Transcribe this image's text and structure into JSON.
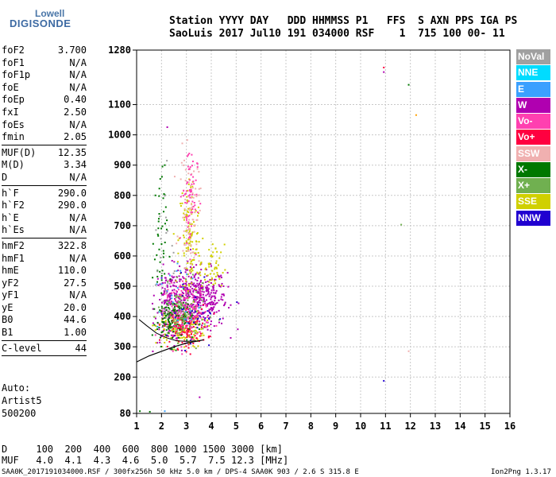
{
  "logo": {
    "line1": "Lowell",
    "line2": "DIGISONDE"
  },
  "header": {
    "line1": "Station YYYY DAY   DDD HHMMSS P1   FFS  S AXN PPS IGA PS",
    "line2": "SaoLuis 2017 Jul10 191 034000 RSF    1  715 100 00- 11"
  },
  "params": [
    [
      [
        "foF2",
        "3.700"
      ],
      [
        "foF1",
        "N/A"
      ],
      [
        "foF1p",
        "N/A"
      ],
      [
        "foE",
        "N/A"
      ],
      [
        "foEp",
        "0.40"
      ],
      [
        "fxI",
        "2.50"
      ],
      [
        "foEs",
        "N/A"
      ],
      [
        "fmin",
        "2.05"
      ]
    ],
    [
      [
        "MUF(D)",
        "12.35"
      ],
      [
        "M(D)",
        "3.34"
      ],
      [
        "D",
        "N/A"
      ]
    ],
    [
      [
        "h`F",
        "290.0"
      ],
      [
        "h`F2",
        "290.0"
      ],
      [
        "h`E",
        "N/A"
      ],
      [
        "h`Es",
        "N/A"
      ]
    ],
    [
      [
        "hmF2",
        "322.8"
      ],
      [
        "hmF1",
        "N/A"
      ],
      [
        "hmE",
        "110.0"
      ],
      [
        "yF2",
        "27.5"
      ],
      [
        "yF1",
        "N/A"
      ],
      [
        "yE",
        "20.0"
      ],
      [
        "B0",
        "44.6"
      ],
      [
        "B1",
        "1.00"
      ]
    ],
    [
      [
        "C-level",
        "44"
      ]
    ]
  ],
  "auto": [
    "Auto:",
    "Artist5",
    "500200"
  ],
  "muf_table": {
    "d_row": "D     100  200  400  600  800 1000 1500 3000 [km]",
    "muf_row": "MUF   4.0  4.1  4.3  4.6  5.0  5.7  7.5 12.3 [MHz]"
  },
  "footer": {
    "left": "SAA0K_2017191034000.RSF / 300fx256h 50 kHz 5.0 km / DPS-4 SAA0K 903 / 2.6 S 315.8 E",
    "right": "Ion2Png 1.3.17"
  },
  "legend": [
    {
      "label": "NoVal",
      "color": "#a0a0a0"
    },
    {
      "label": "NNE",
      "color": "#00dcff"
    },
    {
      "label": "E",
      "color": "#3aa0ff"
    },
    {
      "label": "W",
      "color": "#b000b0"
    },
    {
      "label": "Vo-",
      "color": "#ff40b0"
    },
    {
      "label": "Vo+",
      "color": "#ff0040"
    },
    {
      "label": "SSW",
      "color": "#f0b0b0"
    },
    {
      "label": "X-",
      "color": "#007800"
    },
    {
      "label": "X+",
      "color": "#70b050"
    },
    {
      "label": "SSE",
      "color": "#d0d000"
    },
    {
      "label": "NNW",
      "color": "#2000d0"
    }
  ],
  "chart_data": {
    "type": "scatter",
    "xlim": [
      1,
      16
    ],
    "ylim": [
      80,
      1280
    ],
    "xticks": [
      1,
      2,
      3,
      4,
      5,
      6,
      7,
      8,
      9,
      10,
      11,
      12,
      13,
      14,
      15,
      16
    ],
    "yticks": [
      80,
      200,
      300,
      400,
      500,
      600,
      700,
      800,
      900,
      1000,
      1100,
      1280
    ],
    "grid": true,
    "legend_position": "right",
    "profile_line": [
      [
        1.0,
        250
      ],
      [
        1.5,
        270
      ],
      [
        2.0,
        285
      ],
      [
        2.5,
        300
      ],
      [
        3.0,
        312
      ],
      [
        3.5,
        320
      ],
      [
        3.7,
        323
      ]
    ],
    "profile_line_upper": [
      [
        1.1,
        390
      ],
      [
        1.4,
        370
      ],
      [
        1.8,
        345
      ],
      [
        2.2,
        330
      ],
      [
        2.6,
        320
      ],
      [
        3.0,
        318
      ],
      [
        3.4,
        320
      ]
    ],
    "clusters": [
      {
        "color": "#b000b0",
        "xc": 3.4,
        "yc": 460,
        "sx": 0.6,
        "sy": 50,
        "n": 420
      },
      {
        "color": "#b000b0",
        "xc": 2.3,
        "yc": 440,
        "sx": 0.3,
        "sy": 60,
        "n": 160
      },
      {
        "color": "#d0d000",
        "xc": 3.1,
        "yc": 650,
        "sx": 0.22,
        "sy": 110,
        "n": 130
      },
      {
        "color": "#d0d000",
        "xc": 2.7,
        "yc": 360,
        "sx": 0.5,
        "sy": 30,
        "n": 150
      },
      {
        "color": "#ff0040",
        "xc": 2.9,
        "yc": 370,
        "sx": 0.45,
        "sy": 35,
        "n": 140
      },
      {
        "color": "#ff40b0",
        "xc": 3.0,
        "yc": 420,
        "sx": 0.45,
        "sy": 45,
        "n": 140
      },
      {
        "color": "#007800",
        "xc": 2.4,
        "yc": 390,
        "sx": 0.4,
        "sy": 40,
        "n": 110
      },
      {
        "color": "#70b050",
        "xc": 2.8,
        "yc": 410,
        "sx": 0.5,
        "sy": 45,
        "n": 110
      },
      {
        "color": "#f0b0b0",
        "xc": 3.1,
        "yc": 750,
        "sx": 0.2,
        "sy": 90,
        "n": 80
      },
      {
        "color": "#ff40b0",
        "xc": 3.1,
        "yc": 800,
        "sx": 0.15,
        "sy": 90,
        "n": 70
      },
      {
        "color": "#007800",
        "xc": 1.9,
        "yc": 650,
        "sx": 0.15,
        "sy": 120,
        "n": 45
      },
      {
        "color": "#d0d000",
        "xc": 4.0,
        "yc": 560,
        "sx": 0.25,
        "sy": 40,
        "n": 50
      },
      {
        "color": "#2000d0",
        "xc": 3.2,
        "yc": 420,
        "sx": 0.5,
        "sy": 60,
        "n": 35
      },
      {
        "color": "#3aa0ff",
        "xc": 2.6,
        "yc": 450,
        "sx": 0.5,
        "sy": 80,
        "n": 25
      },
      {
        "color": "#a0a0a0",
        "xc": 2.1,
        "yc": 600,
        "sx": 0.2,
        "sy": 150,
        "n": 25
      }
    ],
    "isolated_points": [
      {
        "x": 10.9,
        "y": 1225,
        "color": "#ff0040"
      },
      {
        "x": 10.9,
        "y": 1210,
        "color": "#b000b0"
      },
      {
        "x": 11.9,
        "y": 1168,
        "color": "#007800"
      },
      {
        "x": 12.2,
        "y": 1068,
        "color": "#ffa000"
      },
      {
        "x": 11.6,
        "y": 706,
        "color": "#70b050"
      },
      {
        "x": 11.9,
        "y": 288,
        "color": "#f0b0b0"
      },
      {
        "x": 10.9,
        "y": 190,
        "color": "#2000d0"
      },
      {
        "x": 2.2,
        "y": 1028,
        "color": "#b000b0"
      },
      {
        "x": 3.5,
        "y": 136,
        "color": "#b000b0"
      },
      {
        "x": 1.1,
        "y": 90,
        "color": "#007800"
      },
      {
        "x": 1.5,
        "y": 88,
        "color": "#007800"
      },
      {
        "x": 2.1,
        "y": 90,
        "color": "#3aa0ff"
      },
      {
        "x": 5.0,
        "y": 450,
        "color": "#2000d0"
      }
    ]
  }
}
